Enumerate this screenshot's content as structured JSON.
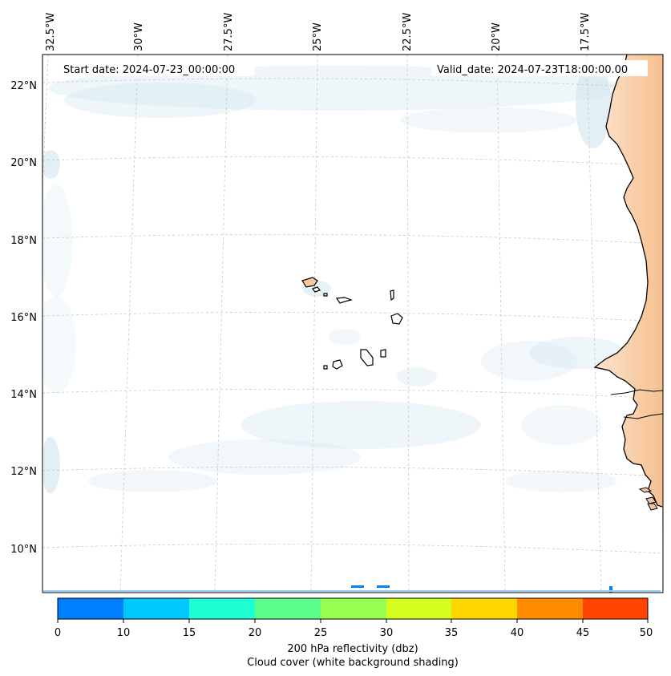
{
  "map": {
    "start_date": "Start date: 2024-07-23_00:00:00",
    "valid_date": "Valid_date: 2024-07-23T18:00:00.00",
    "lon_labels": [
      "32.5°W",
      "30°W",
      "27.5°W",
      "25°W",
      "22.5°W",
      "20°W",
      "17.5°W"
    ],
    "lat_labels": [
      "22°N",
      "20°N",
      "18°N",
      "16°N",
      "14°N",
      "12°N",
      "10°N"
    ]
  },
  "colorbar": {
    "ticks": [
      "0",
      "10",
      "15",
      "20",
      "25",
      "30",
      "35",
      "40",
      "45",
      "50"
    ],
    "colors": [
      "#0080ff",
      "#00c8ff",
      "#1effd4",
      "#5aff8a",
      "#96ff50",
      "#d4ff1e",
      "#ffd700",
      "#ff8c00",
      "#ff4500"
    ],
    "label_line1": "200 hPa reflectivity (dbz)",
    "label_line2": "Cloud cover (white background shading)"
  },
  "style": {
    "land_color": "#f6c79f",
    "cloud_color": "#cfe6ee",
    "grid_color": "#c8c8c8"
  }
}
